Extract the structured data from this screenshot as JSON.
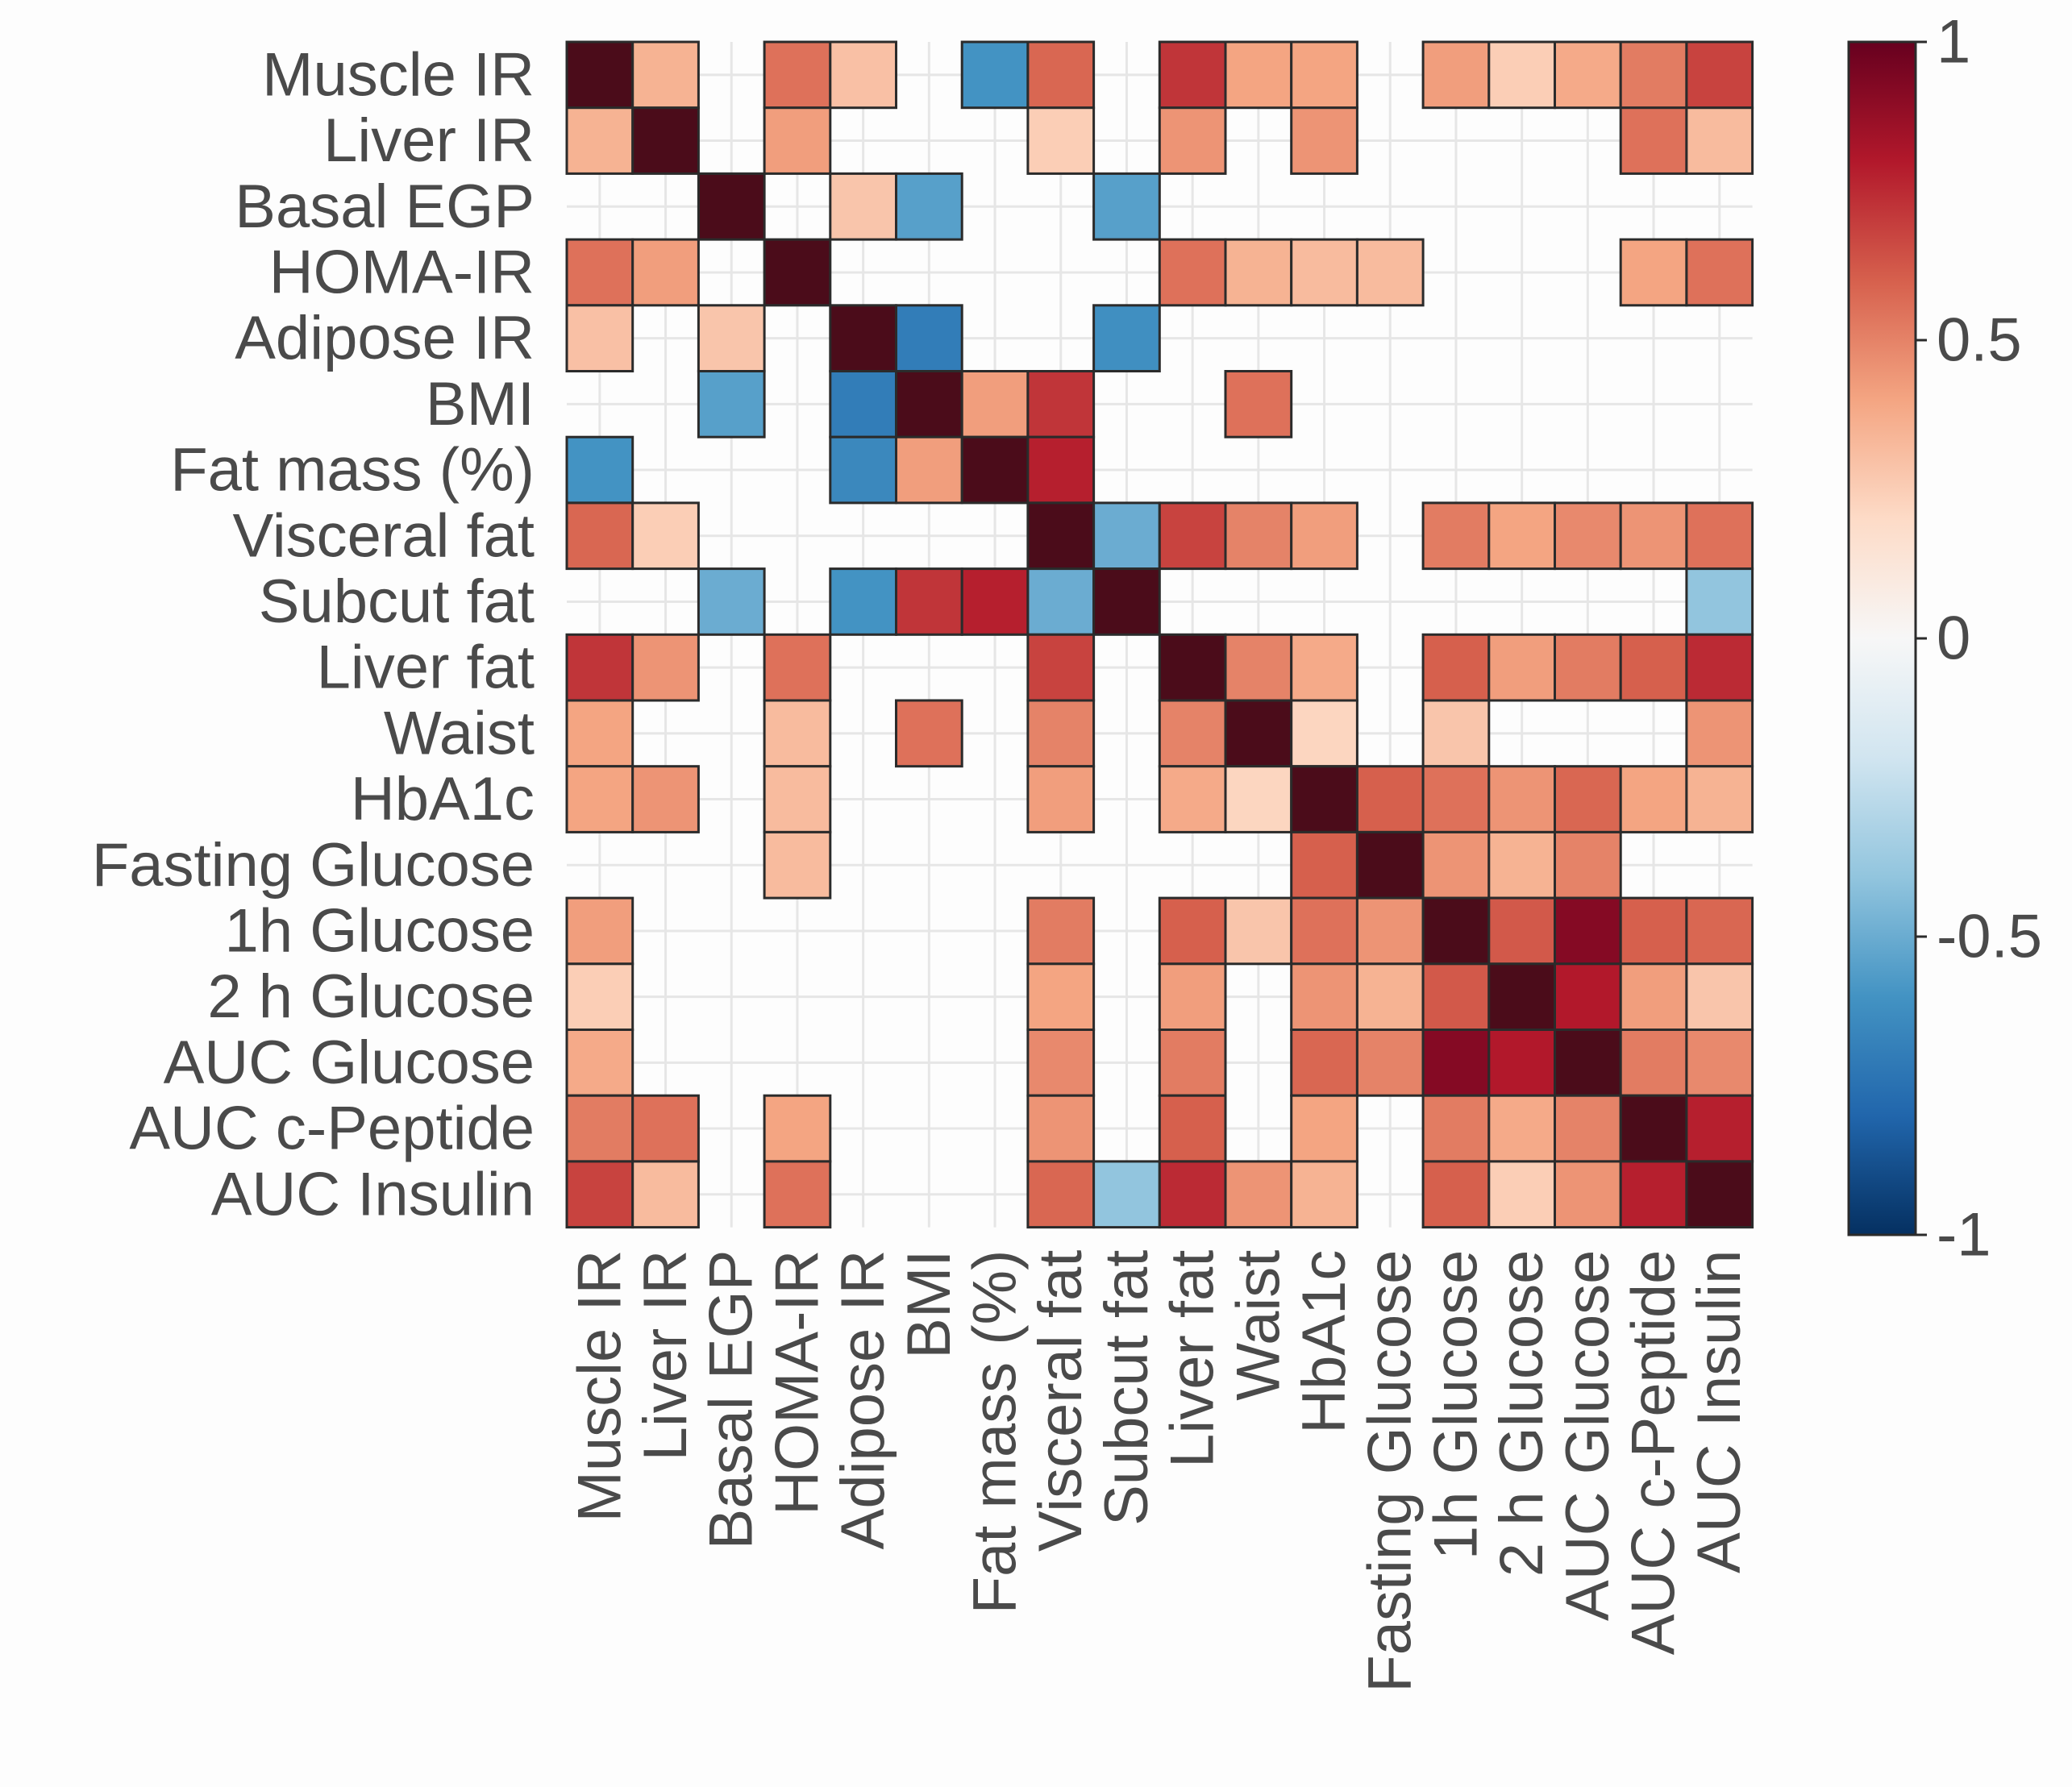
{
  "chart_data": {
    "type": "heatmap",
    "title": "",
    "labels": [
      "Muscle IR",
      "Liver IR",
      "Basal EGP",
      "HOMA-IR",
      "Adipose IR",
      "BMI",
      "Fat mass (%)",
      "Visceral fat",
      "Subcut fat",
      "Liver fat",
      "Waist",
      "HbA1c",
      "Fasting Glucose",
      "1h Glucose",
      "2 h Glucose",
      "AUC Glucose",
      "AUC c-Peptide",
      "AUC Insulin"
    ],
    "matrix": [
      [
        1,
        0.35,
        null,
        0.55,
        0.3,
        null,
        -0.6,
        0.58,
        null,
        0.72,
        0.4,
        0.4,
        null,
        0.42,
        0.25,
        0.38,
        0.52,
        0.68
      ],
      [
        0.35,
        1,
        null,
        0.42,
        null,
        null,
        null,
        0.25,
        null,
        0.45,
        null,
        0.45,
        null,
        null,
        null,
        null,
        0.55,
        0.32
      ],
      [
        null,
        null,
        1,
        null,
        0.28,
        -0.55,
        null,
        null,
        -0.55,
        null,
        null,
        null,
        null,
        null,
        null,
        null,
        null,
        null
      ],
      [
        0.55,
        0.42,
        null,
        1,
        null,
        null,
        null,
        null,
        null,
        0.55,
        0.35,
        0.32,
        0.32,
        null,
        null,
        null,
        0.4,
        0.55
      ],
      [
        0.3,
        null,
        0.28,
        null,
        1,
        -0.7,
        null,
        null,
        -0.62,
        null,
        null,
        null,
        null,
        null,
        null,
        null,
        null,
        null
      ],
      [
        null,
        null,
        -0.55,
        null,
        -0.7,
        1,
        0.42,
        0.72,
        null,
        null,
        0.55,
        null,
        null,
        null,
        null,
        null,
        null,
        null
      ],
      [
        -0.6,
        null,
        null,
        null,
        -0.65,
        0.42,
        1,
        0.78,
        null,
        null,
        null,
        null,
        null,
        null,
        null,
        null,
        null,
        null
      ],
      [
        0.58,
        0.25,
        null,
        null,
        null,
        null,
        null,
        1,
        -0.5,
        0.68,
        0.5,
        0.42,
        null,
        0.52,
        0.4,
        0.48,
        0.45,
        0.55
      ],
      [
        null,
        null,
        -0.5,
        null,
        -0.6,
        0.72,
        0.78,
        -0.5,
        1,
        null,
        null,
        null,
        null,
        null,
        null,
        null,
        null,
        -0.4
      ],
      [
        0.72,
        0.45,
        null,
        0.55,
        null,
        null,
        null,
        0.68,
        null,
        1,
        0.5,
        0.38,
        null,
        0.6,
        0.42,
        0.52,
        0.6,
        0.75
      ],
      [
        0.4,
        null,
        null,
        0.32,
        null,
        0.55,
        null,
        0.5,
        null,
        0.5,
        1,
        0.22,
        null,
        0.28,
        null,
        null,
        null,
        0.45
      ],
      [
        0.4,
        0.45,
        null,
        0.32,
        null,
        null,
        null,
        0.42,
        null,
        0.38,
        0.22,
        1,
        0.6,
        0.55,
        0.45,
        0.58,
        0.4,
        0.35
      ],
      [
        null,
        null,
        null,
        0.32,
        null,
        null,
        null,
        null,
        null,
        null,
        null,
        0.6,
        1,
        0.45,
        0.35,
        0.5,
        null,
        null
      ],
      [
        0.42,
        null,
        null,
        null,
        null,
        null,
        null,
        0.52,
        null,
        0.6,
        0.28,
        0.55,
        0.45,
        1,
        0.62,
        0.92,
        0.6,
        0.58
      ],
      [
        0.25,
        null,
        null,
        null,
        null,
        null,
        null,
        0.4,
        null,
        0.42,
        null,
        0.45,
        0.35,
        0.62,
        1,
        0.8,
        0.42,
        0.28
      ],
      [
        0.38,
        null,
        null,
        null,
        null,
        null,
        null,
        0.48,
        null,
        0.52,
        null,
        0.58,
        0.5,
        0.92,
        0.8,
        1,
        0.52,
        0.48
      ],
      [
        0.52,
        0.55,
        null,
        0.4,
        null,
        null,
        null,
        0.45,
        null,
        0.6,
        null,
        0.4,
        null,
        0.52,
        0.38,
        0.5,
        1,
        0.78
      ],
      [
        0.68,
        0.32,
        null,
        0.55,
        null,
        null,
        null,
        0.58,
        -0.4,
        0.75,
        0.45,
        0.35,
        null,
        0.6,
        0.25,
        0.45,
        0.78,
        1
      ]
    ],
    "colorbar": {
      "min": -1,
      "max": 1,
      "ticks": [
        1,
        0.5,
        0,
        -0.5,
        -1
      ],
      "tick_labels": [
        "1",
        "0.5",
        "0",
        "-0.5",
        "-1"
      ]
    },
    "colors": {
      "scale": [
        "#053061",
        "#2166ac",
        "#4393c3",
        "#92c5de",
        "#d1e5f0",
        "#f7f7f7",
        "#fddbc7",
        "#f4a582",
        "#d6604d",
        "#b2182b",
        "#67001f"
      ],
      "diagonal": "#4b0c1a",
      "grid": "#e6e6e6",
      "cell_border": "#2b2b2b",
      "text": "#4a4a4a"
    }
  }
}
